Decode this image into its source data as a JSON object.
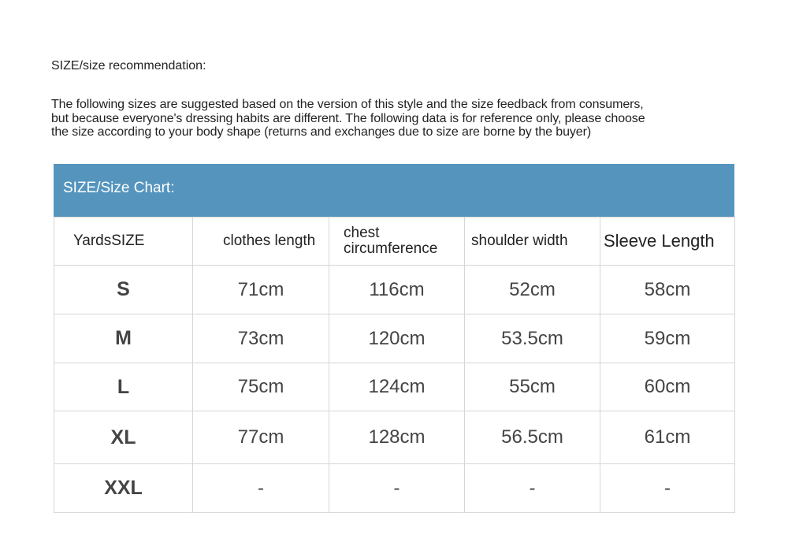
{
  "title": "SIZE/size recommendation:",
  "paragraph_lines": [
    "The following sizes are suggested based on the version of this style and the size feedback from consumers,",
    "but because everyone's dressing habits are different. The following data is for reference only, please choose",
    "the size according to your body shape (returns and exchanges due to size are borne by the buyer)"
  ],
  "chart": {
    "heading": "SIZE/Size Chart:",
    "header_color": "#5595bd",
    "columns": [
      "YardsSIZE",
      "clothes length",
      "chest circumference",
      "shoulder width",
      "Sleeve Length"
    ],
    "rows": [
      [
        "S",
        "71cm",
        "116cm",
        "52cm",
        "58cm"
      ],
      [
        "M",
        "73cm",
        "120cm",
        "53.5cm",
        "59cm"
      ],
      [
        "L",
        "75cm",
        "124cm",
        "55cm",
        "60cm"
      ],
      [
        "XL",
        "77cm",
        "128cm",
        "56.5cm",
        "61cm"
      ],
      [
        "XXL",
        "-",
        "-",
        "-",
        "-"
      ]
    ]
  }
}
